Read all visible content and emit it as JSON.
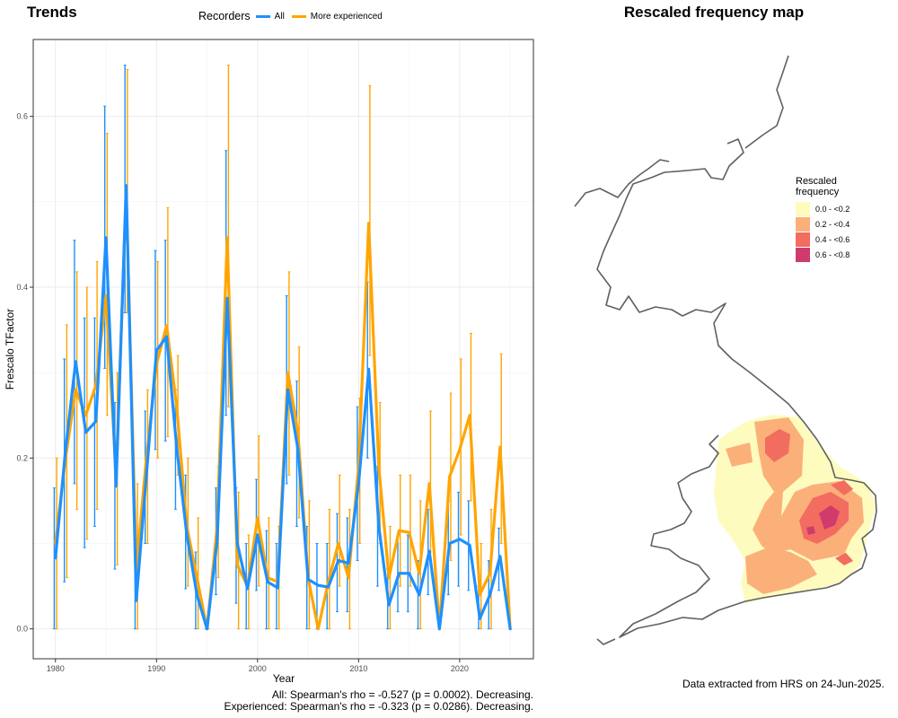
{
  "trends": {
    "title": "Trends",
    "legend_title": "Recorders",
    "stats_all": "All: Spearman's rho = -0.527 (p = 0.0002). Decreasing.",
    "stats_experienced": "Experienced: Spearman's rho = -0.323 (p = 0.0286). Decreasing."
  },
  "map": {
    "title": "Rescaled frequency map",
    "legend_title": "Rescaled frequency",
    "legend_items": [
      {
        "label": "0.0 - <0.2",
        "color": "#fefbbf"
      },
      {
        "label": "0.2 - <0.4",
        "color": "#fbb07a"
      },
      {
        "label": "0.4 - <0.6",
        "color": "#f26c60"
      },
      {
        "label": "0.6 - <0.8",
        "color": "#cf3b6d"
      }
    ],
    "source_note": "Data extracted from HRS on 24-Jun-2025."
  },
  "chart_data": {
    "type": "line",
    "xlabel": "Year",
    "ylabel": "Frescalo TFactor",
    "xlim": [
      1978.8,
      1926.3
    ],
    "ylim": [
      -0.035,
      0.69
    ],
    "x_ticks": [
      1980,
      1990,
      2000,
      2010,
      2020
    ],
    "y_ticks": [
      0.0,
      0.2,
      0.4,
      0.6
    ],
    "y_tick_labels": [
      "0.0",
      "0.2",
      "0.4",
      "0.6"
    ],
    "grid": true,
    "legend_position": "top",
    "series": [
      {
        "name": "All",
        "color": "#1e90ff",
        "x": [
          1980,
          1981,
          1982,
          1983,
          1984,
          1985,
          1986,
          1987,
          1988,
          1989,
          1990,
          1991,
          1992,
          1993,
          1994,
          1995,
          1996,
          1997,
          1998,
          1999,
          2000,
          2001,
          2002,
          2003,
          2004,
          2005,
          2006,
          2007,
          2008,
          2009,
          2010,
          2011,
          2012,
          2013,
          2014,
          2015,
          2016,
          2017,
          2018,
          2019,
          2020,
          2021,
          2022,
          2023,
          2024,
          2025
        ],
        "y": [
          0.083,
          0.21,
          0.313,
          0.23,
          0.243,
          0.458,
          0.167,
          0.519,
          0.033,
          0.18,
          0.326,
          0.342,
          0.212,
          0.11,
          0.04,
          0.0,
          0.103,
          0.387,
          0.1,
          0.047,
          0.11,
          0.055,
          0.048,
          0.28,
          0.21,
          0.058,
          0.051,
          0.049,
          0.08,
          0.077,
          0.17,
          0.304,
          0.12,
          0.028,
          0.065,
          0.065,
          0.04,
          0.091,
          0.0,
          0.1,
          0.105,
          0.098,
          0.012,
          0.04,
          0.085,
          0.0
        ],
        "lower": [
          0.0,
          0.055,
          0.17,
          0.095,
          0.12,
          0.305,
          0.07,
          0.37,
          0.0,
          0.1,
          0.21,
          0.22,
          0.14,
          0.047,
          0.0,
          0.0,
          0.04,
          0.25,
          0.03,
          0.0,
          0.045,
          0.0,
          0.0,
          0.17,
          0.12,
          0.0,
          0.0,
          0.0,
          0.02,
          0.02,
          0.08,
          0.2,
          0.05,
          0.0,
          0.02,
          0.02,
          0.0,
          0.04,
          0.0,
          0.04,
          0.05,
          0.045,
          0.0,
          0.0,
          0.045,
          0.0
        ],
        "upper": [
          0.165,
          0.316,
          0.455,
          0.364,
          0.364,
          0.612,
          0.265,
          0.66,
          0.08,
          0.255,
          0.443,
          0.455,
          0.28,
          0.18,
          0.09,
          0.01,
          0.165,
          0.56,
          0.165,
          0.1,
          0.175,
          0.115,
          0.1,
          0.39,
          0.29,
          0.12,
          0.1,
          0.1,
          0.135,
          0.13,
          0.26,
          0.406,
          0.19,
          0.07,
          0.11,
          0.11,
          0.08,
          0.14,
          0.0,
          0.15,
          0.16,
          0.15,
          0.05,
          0.08,
          0.118,
          0.0
        ]
      },
      {
        "name": "More experienced",
        "color": "#ffa500",
        "x": [
          1980,
          1981,
          1982,
          1983,
          1984,
          1985,
          1986,
          1987,
          1988,
          1989,
          1990,
          1991,
          1992,
          1993,
          1994,
          1995,
          1996,
          1997,
          1998,
          1999,
          2000,
          2001,
          2002,
          2003,
          2004,
          2005,
          2006,
          2007,
          2008,
          2009,
          2010,
          2011,
          2012,
          2013,
          2014,
          2015,
          2016,
          2017,
          2018,
          2019,
          2020,
          2021,
          2022,
          2023,
          2024,
          2025
        ],
        "y": [
          0.1,
          0.2,
          0.28,
          0.25,
          0.285,
          0.39,
          0.18,
          0.51,
          0.07,
          0.2,
          0.31,
          0.355,
          0.26,
          0.12,
          0.06,
          0.0,
          0.12,
          0.458,
          0.075,
          0.05,
          0.13,
          0.06,
          0.055,
          0.3,
          0.23,
          0.06,
          0.0,
          0.055,
          0.1,
          0.06,
          0.19,
          0.475,
          0.19,
          0.06,
          0.115,
          0.113,
          0.065,
          0.17,
          0.0,
          0.178,
          0.21,
          0.25,
          0.04,
          0.065,
          0.213,
          0.0
        ],
        "lower": [
          0.0,
          0.06,
          0.14,
          0.105,
          0.14,
          0.25,
          0.075,
          0.37,
          0.0,
          0.1,
          0.2,
          0.225,
          0.18,
          0.05,
          0.0,
          0.0,
          0.06,
          0.26,
          0.0,
          0.0,
          0.05,
          0.0,
          0.0,
          0.18,
          0.13,
          0.0,
          0.0,
          0.0,
          0.05,
          0.0,
          0.1,
          0.32,
          0.1,
          0.0,
          0.05,
          0.05,
          0.0,
          0.09,
          0.0,
          0.08,
          0.11,
          0.15,
          0.0,
          0.0,
          0.1,
          0.0
        ],
        "upper": [
          0.2,
          0.356,
          0.418,
          0.4,
          0.43,
          0.58,
          0.3,
          0.655,
          0.17,
          0.28,
          0.43,
          0.493,
          0.32,
          0.2,
          0.13,
          0.02,
          0.19,
          0.66,
          0.16,
          0.11,
          0.226,
          0.13,
          0.12,
          0.418,
          0.33,
          0.15,
          0.0,
          0.14,
          0.18,
          0.14,
          0.27,
          0.636,
          0.265,
          0.12,
          0.18,
          0.18,
          0.15,
          0.255,
          0.0,
          0.276,
          0.316,
          0.346,
          0.1,
          0.14,
          0.322,
          0.0
        ]
      }
    ]
  }
}
